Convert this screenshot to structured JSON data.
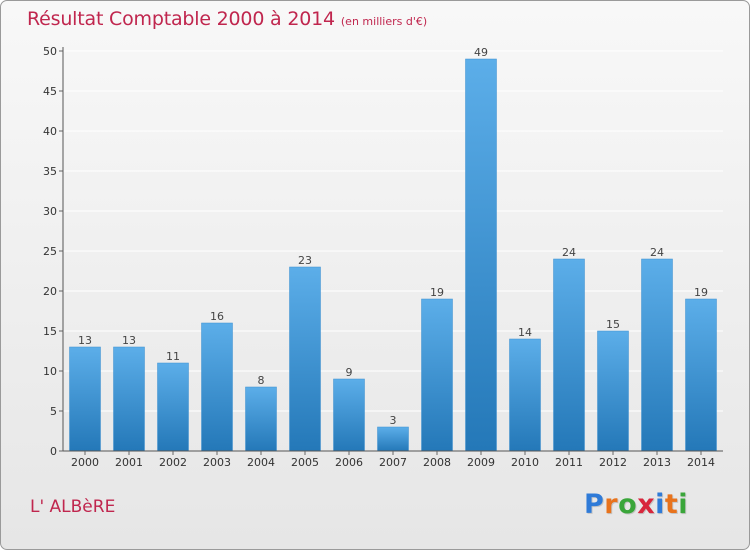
{
  "header": {
    "title": "Résultat Comptable 2000 à 2014",
    "unit_note": "(en milliers d'€)"
  },
  "commune": "L' ALBèRE",
  "logo": {
    "text": "Proxiti",
    "letter_colors": [
      "#2f7bd8",
      "#e8731c",
      "#3aa63a",
      "#d8263c",
      "#2f7bd8",
      "#e8731c",
      "#3aa63a"
    ]
  },
  "colors": {
    "bar_top": "#5caee9",
    "bar_bottom": "#2478b8",
    "title": "#c0264e",
    "grid": "#ffffff"
  },
  "chart_data": {
    "type": "bar",
    "title": "Résultat Comptable 2000 à 2014",
    "ylabel": "(en milliers d'€)",
    "xlabel": "",
    "categories": [
      "2000",
      "2001",
      "2002",
      "2003",
      "2004",
      "2005",
      "2006",
      "2007",
      "2008",
      "2009",
      "2010",
      "2011",
      "2012",
      "2013",
      "2014"
    ],
    "values": [
      13,
      13,
      11,
      16,
      8,
      23,
      9,
      3,
      19,
      49,
      14,
      24,
      15,
      24,
      19
    ],
    "ylim": [
      0,
      50
    ],
    "yticks": [
      0,
      5,
      10,
      15,
      20,
      25,
      30,
      35,
      40,
      45,
      50
    ],
    "grid": true,
    "legend": "none"
  }
}
